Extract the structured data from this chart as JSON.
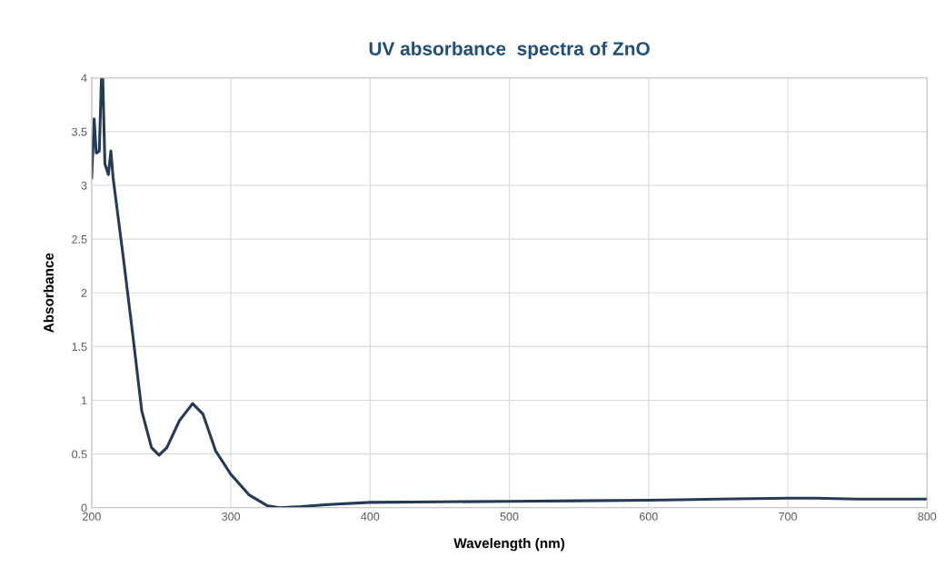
{
  "chart_data": {
    "type": "line",
    "title": "UV absorbance  spectra of ZnO",
    "xlabel": "Wavelength (nm)",
    "ylabel": "Absorbance",
    "series": [
      {
        "color": "#243a55",
        "x": [
          200,
          201.8,
          203.3,
          205.5,
          207,
          208,
          209.5,
          212,
          213.8,
          215.4,
          223,
          229.7,
          236,
          243,
          248.4,
          254,
          263,
          272.5,
          280,
          289,
          300,
          313,
          326,
          335,
          350,
          370,
          400,
          450,
          500,
          550,
          600,
          650,
          700,
          720,
          750,
          800
        ],
        "values": [
          3.07,
          3.62,
          3.3,
          3.32,
          3.99,
          3.99,
          3.2,
          3.1,
          3.32,
          3.07,
          2.3,
          1.59,
          0.9,
          0.56,
          0.49,
          0.56,
          0.81,
          0.97,
          0.87,
          0.53,
          0.31,
          0.12,
          0.02,
          0.0,
          0.01,
          0.03,
          0.05,
          0.055,
          0.06,
          0.065,
          0.07,
          0.08,
          0.09,
          0.09,
          0.08,
          0.08
        ]
      }
    ],
    "xlim": [
      200,
      800
    ],
    "xticks": [
      200,
      300,
      400,
      500,
      600,
      700,
      800
    ],
    "ylim": [
      0,
      4
    ],
    "yticks": [
      0,
      0.5,
      1,
      1.5,
      2,
      2.5,
      3,
      3.5,
      4
    ],
    "grid": true,
    "marker": "none",
    "line_style": "solid",
    "legend": false
  }
}
